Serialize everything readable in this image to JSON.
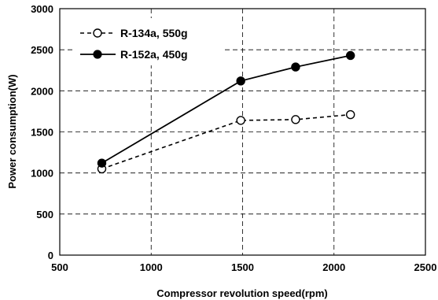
{
  "chart_data": {
    "type": "line",
    "xlabel": "Compressor revolution speed(rpm)",
    "ylabel": "Power consumption(W)",
    "xlim": [
      500,
      2500
    ],
    "ylim": [
      0,
      3000
    ],
    "x_ticks": [
      500,
      1000,
      1500,
      2000,
      2500
    ],
    "y_ticks": [
      0,
      500,
      1000,
      1500,
      2000,
      2500,
      3000
    ],
    "grid": true,
    "legend_position": "top-left",
    "series": [
      {
        "name": "R-134a, 550g",
        "marker": "open-circle",
        "line_style": "dashed",
        "x": [
          730,
          1490,
          1790,
          2090
        ],
        "values": [
          1050,
          1640,
          1650,
          1710
        ]
      },
      {
        "name": "R-152a, 450g",
        "marker": "filled-circle",
        "line_style": "solid",
        "x": [
          730,
          1490,
          1790,
          2090
        ],
        "values": [
          1120,
          2120,
          2290,
          2430
        ]
      }
    ]
  }
}
